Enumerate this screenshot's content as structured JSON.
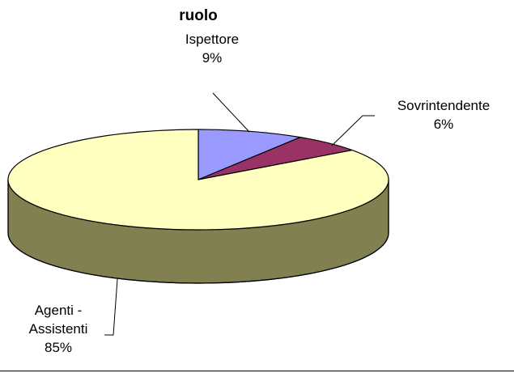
{
  "chart_data": {
    "type": "pie",
    "title": "ruolo",
    "style": "3d",
    "slices": [
      {
        "name": "Ispettore",
        "value": 9,
        "percent_label": "9%",
        "color": "#9999ff",
        "side_color": "#5f5f9e"
      },
      {
        "name": "Sovrintendente",
        "value": 6,
        "percent_label": "6%",
        "color": "#993366",
        "side_color": "#5e1f3e"
      },
      {
        "name": "Agenti - Assistenti",
        "name_lines": [
          "Agenti -",
          "Assistenti"
        ],
        "value": 85,
        "percent_label": "85%",
        "color": "#ffffc0",
        "side_color": "#808050"
      }
    ]
  }
}
